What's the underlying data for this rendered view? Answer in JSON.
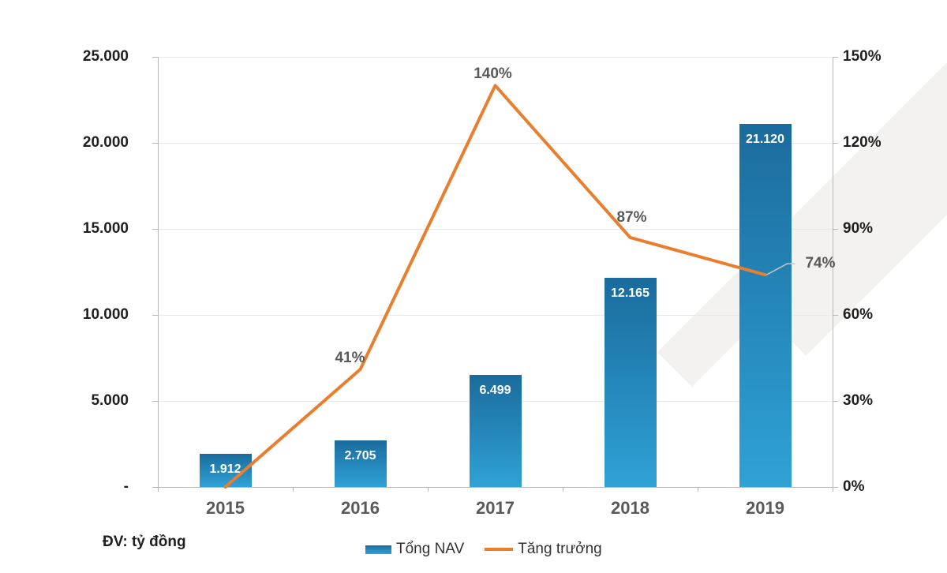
{
  "chart_data": {
    "type": "combo",
    "title": "",
    "categories": [
      "2015",
      "2016",
      "2017",
      "2018",
      "2019"
    ],
    "series": [
      {
        "name": "Tổng NAV",
        "type": "bar",
        "axis": "left",
        "values": [
          1912,
          2705,
          6499,
          12165,
          21120
        ],
        "value_labels": [
          "1.912",
          "2.705",
          "6.499",
          "12.165",
          "21.120"
        ]
      },
      {
        "name": "Tăng trưởng",
        "type": "line",
        "axis": "right",
        "values_percent": [
          0,
          41,
          140,
          87,
          74
        ],
        "point_labels": [
          "",
          "41%",
          "140%",
          "87%",
          "74%"
        ]
      }
    ],
    "left_axis": {
      "min": 0,
      "max": 25000,
      "tick_labels": [
        "25.000",
        "20.000",
        "15.000",
        "10.000",
        "5.000",
        "-"
      ]
    },
    "right_axis": {
      "min": "0%",
      "max": "150%",
      "tick_labels": [
        "150%",
        "120%",
        "90%",
        "60%",
        "30%",
        "0%"
      ]
    },
    "grid": true,
    "legend_position": "bottom",
    "unit_note": "ĐV: tỷ đồng",
    "legend_items": [
      {
        "label": "Tổng NAV",
        "swatch": "bar"
      },
      {
        "label": "Tăng trưởng",
        "swatch": "line"
      }
    ],
    "colors": {
      "bar_gradient_top": "#1b6b9d",
      "bar_gradient_bottom": "#2fa2d6",
      "line": "#e87e2e",
      "axis_text": "#1f1f1f",
      "category_text": "#595959",
      "point_label_text": "#595959",
      "bar_label_text": "#ffffff",
      "gridline": "#e9e9e9",
      "axis_line": "#b7b7b7",
      "leader_line": "#c9c9c9",
      "background_stripe": "#f3f2f1"
    }
  }
}
